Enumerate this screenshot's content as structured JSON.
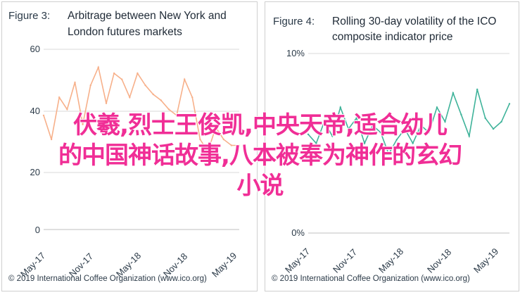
{
  "chart_data": [
    {
      "type": "line",
      "figure_label": "Figure 3:",
      "title_line1": "Arbitrage between New York and",
      "title_line2": "London futures markets",
      "ylim": [
        0,
        60
      ],
      "yticks": [
        "60",
        "40",
        "20",
        "0"
      ],
      "xticks": [
        "May-17",
        "Nov-17",
        "May-18",
        "Nov-18",
        "May-19"
      ],
      "line_color": "#f7b08a",
      "x": [
        "May-17",
        "Jun-17",
        "Jul-17",
        "Aug-17",
        "Sep-17",
        "Oct-17",
        "Nov-17",
        "Dec-17",
        "Jan-18",
        "Feb-18",
        "Mar-18",
        "Apr-18",
        "May-18",
        "Jun-18",
        "Jul-18",
        "Aug-18",
        "Sep-18",
        "Oct-18",
        "Nov-18",
        "Dec-18",
        "Jan-19",
        "Feb-19",
        "Mar-19",
        "Apr-19",
        "May-19",
        "Jun-19"
      ],
      "values": [
        38,
        30,
        44,
        40,
        49,
        35,
        48,
        54,
        42,
        52,
        50,
        44,
        52,
        48,
        45,
        43,
        40,
        38,
        50,
        44,
        30,
        26,
        34,
        30,
        28,
        28
      ],
      "source": "© 2019 International Coffee Organization (www.ico.org)"
    },
    {
      "type": "line",
      "figure_label": "Figure 4:",
      "title_line1": "Rolling 30-day volatility of the ICO",
      "title_line2": "composite indicator price",
      "ylim": [
        0,
        10
      ],
      "yticks": [
        "10%",
        "0%"
      ],
      "xticks": [
        "May-17",
        "Nov-17",
        "May-18",
        "Nov-18",
        "May-19"
      ],
      "line_color": "#3fb39a",
      "x": [
        "May-17",
        "Jun-17",
        "Jul-17",
        "Aug-17",
        "Sep-17",
        "Oct-17",
        "Nov-17",
        "Dec-17",
        "Jan-18",
        "Feb-18",
        "Mar-18",
        "Apr-18",
        "May-18",
        "Jun-18",
        "Jul-18",
        "Aug-18",
        "Sep-18",
        "Oct-18",
        "Nov-18",
        "Dec-18",
        "Jan-19",
        "Feb-19",
        "Mar-19",
        "Apr-19",
        "May-19",
        "Jun-19"
      ],
      "values": [
        5.5,
        5.0,
        6.2,
        5.4,
        7.0,
        5.8,
        6.4,
        5.0,
        6.0,
        5.6,
        4.4,
        5.2,
        5.8,
        5.0,
        6.0,
        5.6,
        7.0,
        6.2,
        7.8,
        6.6,
        5.4,
        8.0,
        6.4,
        5.8,
        6.2,
        7.2
      ],
      "source": "© 2019 International Coffee Organization (www.ico.org)"
    }
  ],
  "overlay": {
    "line1": "伏羲,烈士王俊凯,中央天帝,适合幼儿",
    "line2": "的中国神话故事,八本被奉为神作的玄幻",
    "line3": "小说"
  }
}
